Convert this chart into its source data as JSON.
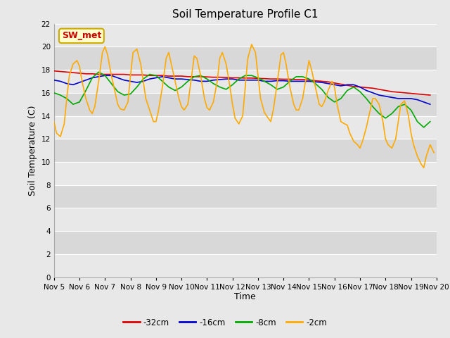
{
  "title": "Soil Temperature Profile C1",
  "xlabel": "Time",
  "ylabel": "Soil Temperature (C)",
  "ylim": [
    0,
    22
  ],
  "yticks": [
    0,
    2,
    4,
    6,
    8,
    10,
    12,
    14,
    16,
    18,
    20,
    22
  ],
  "xlim_days": [
    5,
    20
  ],
  "xtick_labels": [
    "Nov 5",
    "Nov 6",
    "Nov 7",
    "Nov 8",
    "Nov 9",
    "Nov 10",
    "Nov 11",
    "Nov 12",
    "Nov 13",
    "Nov 14",
    "Nov 15",
    "Nov 16",
    "Nov 17",
    "Nov 18",
    "Nov 19",
    "Nov 20"
  ],
  "annotation_text": "SW_met",
  "annotation_color": "#cc0000",
  "annotation_bg": "#ffffcc",
  "annotation_border": "#ccaa00",
  "series": {
    "-32cm": {
      "color": "#dd0000",
      "data_x": [
        5.0,
        5.25,
        5.5,
        5.75,
        6.0,
        6.25,
        6.5,
        6.75,
        7.0,
        7.25,
        7.5,
        7.75,
        8.0,
        8.25,
        8.5,
        8.75,
        9.0,
        9.25,
        9.5,
        9.75,
        10.0,
        10.25,
        10.5,
        10.75,
        11.0,
        11.25,
        11.5,
        11.75,
        12.0,
        12.25,
        12.5,
        12.75,
        13.0,
        13.25,
        13.5,
        13.75,
        14.0,
        14.25,
        14.5,
        14.75,
        15.0,
        15.25,
        15.5,
        15.75,
        16.0,
        16.25,
        16.5,
        16.75,
        17.0,
        17.25,
        17.5,
        17.75,
        18.0,
        18.25,
        18.5,
        18.75,
        19.0,
        19.25,
        19.5,
        19.75
      ],
      "data_y": [
        17.9,
        17.85,
        17.8,
        17.75,
        17.7,
        17.65,
        17.65,
        17.6,
        17.6,
        17.6,
        17.6,
        17.6,
        17.55,
        17.55,
        17.55,
        17.5,
        17.5,
        17.5,
        17.45,
        17.45,
        17.45,
        17.4,
        17.4,
        17.4,
        17.38,
        17.35,
        17.35,
        17.33,
        17.3,
        17.3,
        17.28,
        17.28,
        17.25,
        17.23,
        17.2,
        17.2,
        17.18,
        17.18,
        17.15,
        17.15,
        17.1,
        17.05,
        17.0,
        16.95,
        16.85,
        16.75,
        16.65,
        16.55,
        16.5,
        16.45,
        16.4,
        16.3,
        16.2,
        16.1,
        16.05,
        16.0,
        15.95,
        15.9,
        15.85,
        15.8
      ]
    },
    "-16cm": {
      "color": "#0000cc",
      "data_x": [
        5.0,
        5.25,
        5.5,
        5.75,
        6.0,
        6.25,
        6.5,
        6.75,
        7.0,
        7.25,
        7.5,
        7.75,
        8.0,
        8.25,
        8.5,
        8.75,
        9.0,
        9.25,
        9.5,
        9.75,
        10.0,
        10.25,
        10.5,
        10.75,
        11.0,
        11.25,
        11.5,
        11.75,
        12.0,
        12.25,
        12.5,
        12.75,
        13.0,
        13.25,
        13.5,
        13.75,
        14.0,
        14.25,
        14.5,
        14.75,
        15.0,
        15.25,
        15.5,
        15.75,
        16.0,
        16.25,
        16.5,
        16.75,
        17.0,
        17.25,
        17.5,
        17.75,
        18.0,
        18.25,
        18.5,
        18.75,
        19.0,
        19.25,
        19.5,
        19.75
      ],
      "data_y": [
        17.1,
        17.0,
        16.8,
        16.7,
        16.9,
        17.1,
        17.3,
        17.4,
        17.5,
        17.5,
        17.3,
        17.1,
        17.0,
        16.9,
        17.0,
        17.2,
        17.3,
        17.4,
        17.3,
        17.2,
        17.2,
        17.15,
        17.1,
        17.0,
        17.0,
        17.1,
        17.15,
        17.2,
        17.2,
        17.1,
        17.1,
        17.1,
        17.1,
        17.0,
        17.0,
        17.05,
        17.05,
        17.0,
        17.0,
        17.0,
        17.0,
        16.95,
        16.9,
        16.8,
        16.7,
        16.6,
        16.7,
        16.7,
        16.5,
        16.2,
        16.0,
        15.8,
        15.7,
        15.6,
        15.5,
        15.5,
        15.5,
        15.4,
        15.2,
        15.0
      ]
    },
    "-8cm": {
      "color": "#00aa00",
      "data_x": [
        5.0,
        5.25,
        5.5,
        5.75,
        6.0,
        6.25,
        6.5,
        6.75,
        7.0,
        7.25,
        7.5,
        7.75,
        8.0,
        8.25,
        8.5,
        8.75,
        9.0,
        9.25,
        9.5,
        9.75,
        10.0,
        10.25,
        10.5,
        10.75,
        11.0,
        11.25,
        11.5,
        11.75,
        12.0,
        12.25,
        12.5,
        12.75,
        13.0,
        13.25,
        13.5,
        13.75,
        14.0,
        14.25,
        14.5,
        14.75,
        15.0,
        15.25,
        15.5,
        15.75,
        16.0,
        16.25,
        16.5,
        16.75,
        17.0,
        17.25,
        17.5,
        17.75,
        18.0,
        18.25,
        18.5,
        18.75,
        19.0,
        19.25,
        19.5,
        19.75
      ],
      "data_y": [
        16.0,
        15.8,
        15.5,
        15.0,
        15.2,
        16.2,
        17.3,
        17.8,
        17.5,
        16.8,
        16.1,
        15.8,
        15.9,
        16.5,
        17.2,
        17.6,
        17.5,
        17.0,
        16.5,
        16.2,
        16.5,
        17.0,
        17.4,
        17.5,
        17.2,
        16.8,
        16.5,
        16.3,
        16.7,
        17.2,
        17.5,
        17.5,
        17.3,
        17.0,
        16.7,
        16.3,
        16.5,
        17.0,
        17.4,
        17.4,
        17.2,
        16.8,
        16.3,
        15.6,
        15.2,
        15.5,
        16.2,
        16.5,
        16.1,
        15.5,
        14.8,
        14.2,
        13.8,
        14.2,
        14.8,
        15.0,
        14.5,
        13.5,
        13.0,
        13.5
      ]
    },
    "-2cm": {
      "color": "#ffaa00",
      "data_x": [
        5.0,
        5.1,
        5.25,
        5.4,
        5.5,
        5.6,
        5.75,
        5.9,
        6.0,
        6.1,
        6.25,
        6.4,
        6.5,
        6.6,
        6.75,
        6.9,
        7.0,
        7.1,
        7.25,
        7.4,
        7.5,
        7.6,
        7.75,
        7.9,
        8.0,
        8.1,
        8.25,
        8.4,
        8.5,
        8.6,
        8.75,
        8.9,
        9.0,
        9.1,
        9.25,
        9.4,
        9.5,
        9.6,
        9.75,
        9.9,
        10.0,
        10.1,
        10.25,
        10.4,
        10.5,
        10.6,
        10.75,
        10.9,
        11.0,
        11.1,
        11.25,
        11.4,
        11.5,
        11.6,
        11.75,
        11.9,
        12.0,
        12.1,
        12.25,
        12.4,
        12.5,
        12.6,
        12.75,
        12.9,
        13.0,
        13.1,
        13.25,
        13.4,
        13.5,
        13.6,
        13.75,
        13.9,
        14.0,
        14.1,
        14.25,
        14.4,
        14.5,
        14.6,
        14.75,
        14.9,
        15.0,
        15.1,
        15.25,
        15.4,
        15.5,
        15.6,
        15.75,
        15.9,
        16.0,
        16.1,
        16.25,
        16.4,
        16.5,
        16.6,
        16.75,
        16.9,
        17.0,
        17.1,
        17.25,
        17.4,
        17.5,
        17.6,
        17.75,
        17.9,
        18.0,
        18.1,
        18.25,
        18.4,
        18.5,
        18.6,
        18.75,
        18.9,
        19.0,
        19.1,
        19.25,
        19.4,
        19.5,
        19.6,
        19.75,
        19.9
      ],
      "data_y": [
        13.5,
        12.5,
        12.2,
        13.3,
        15.5,
        17.5,
        18.5,
        18.8,
        18.3,
        17.0,
        15.5,
        14.5,
        14.2,
        14.8,
        17.0,
        19.5,
        20.0,
        19.3,
        17.5,
        16.0,
        15.0,
        14.6,
        14.5,
        15.2,
        17.5,
        19.5,
        19.8,
        18.5,
        17.0,
        15.5,
        14.5,
        13.5,
        13.5,
        14.5,
        16.5,
        19.0,
        19.5,
        18.5,
        17.0,
        15.5,
        14.8,
        14.5,
        15.0,
        17.5,
        19.2,
        19.0,
        17.5,
        15.5,
        14.7,
        14.5,
        15.2,
        17.0,
        19.0,
        19.5,
        18.5,
        16.5,
        15.0,
        13.8,
        13.3,
        14.0,
        16.5,
        19.0,
        20.2,
        19.5,
        17.5,
        15.5,
        14.3,
        13.8,
        13.5,
        14.5,
        16.8,
        19.3,
        19.5,
        18.5,
        16.5,
        15.0,
        14.5,
        14.5,
        15.5,
        17.5,
        18.8,
        18.0,
        16.5,
        15.0,
        14.8,
        15.2,
        16.2,
        17.0,
        16.5,
        15.0,
        13.5,
        13.3,
        13.2,
        12.5,
        11.8,
        11.5,
        11.2,
        11.8,
        13.0,
        14.5,
        15.5,
        15.5,
        15.0,
        13.5,
        12.0,
        11.5,
        11.2,
        12.0,
        13.5,
        15.0,
        15.3,
        14.0,
        12.5,
        11.5,
        10.5,
        9.8,
        9.5,
        10.5,
        11.5,
        10.8
      ]
    }
  },
  "legend_entries": [
    {
      "label": "-32cm",
      "color": "#dd0000"
    },
    {
      "label": "-16cm",
      "color": "#0000cc"
    },
    {
      "label": "-8cm",
      "color": "#00aa00"
    },
    {
      "label": "-2cm",
      "color": "#ffaa00"
    }
  ],
  "bg_color": "#e8e8e8",
  "plot_bg_color_light": "#e8e8e8",
  "plot_bg_color_dark": "#d8d8d8",
  "grid_color": "#ffffff",
  "title_fontsize": 11,
  "axis_label_fontsize": 9,
  "tick_fontsize": 7.5
}
